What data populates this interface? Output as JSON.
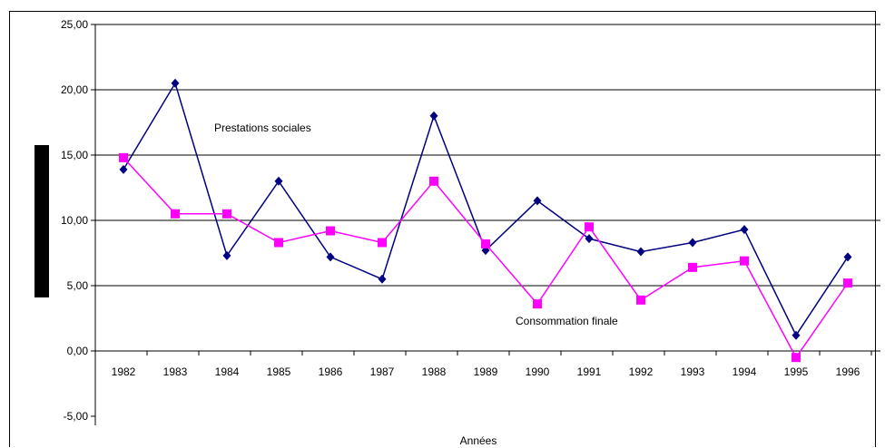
{
  "chart_data": {
    "type": "line",
    "title": "",
    "xlabel": "Années",
    "ylabel": "",
    "ylim": [
      -5,
      25
    ],
    "yticks": [
      "-5,00",
      "0,00",
      "5,00",
      "10,00",
      "15,00",
      "20,00",
      "25,00"
    ],
    "ytick_values": [
      -5,
      0,
      5,
      10,
      15,
      20,
      25
    ],
    "grid": true,
    "categories": [
      "1982",
      "1983",
      "1984",
      "1985",
      "1986",
      "1987",
      "1988",
      "1989",
      "1990",
      "1991",
      "1992",
      "1993",
      "1994",
      "1995",
      "1996"
    ],
    "series": [
      {
        "name": "Prestations sociales",
        "color": "#000080",
        "marker": "diamond",
        "values": [
          13.9,
          20.5,
          7.3,
          13.0,
          7.2,
          5.5,
          18.0,
          7.7,
          11.5,
          8.6,
          7.6,
          8.3,
          9.3,
          1.2,
          7.2
        ]
      },
      {
        "name": "Consommation finale",
        "color": "#FF00FF",
        "marker": "square",
        "values": [
          14.8,
          10.5,
          10.5,
          8.3,
          9.2,
          8.3,
          13.0,
          8.2,
          3.6,
          9.5,
          3.9,
          6.4,
          6.9,
          -0.5,
          5.2
        ]
      }
    ]
  }
}
